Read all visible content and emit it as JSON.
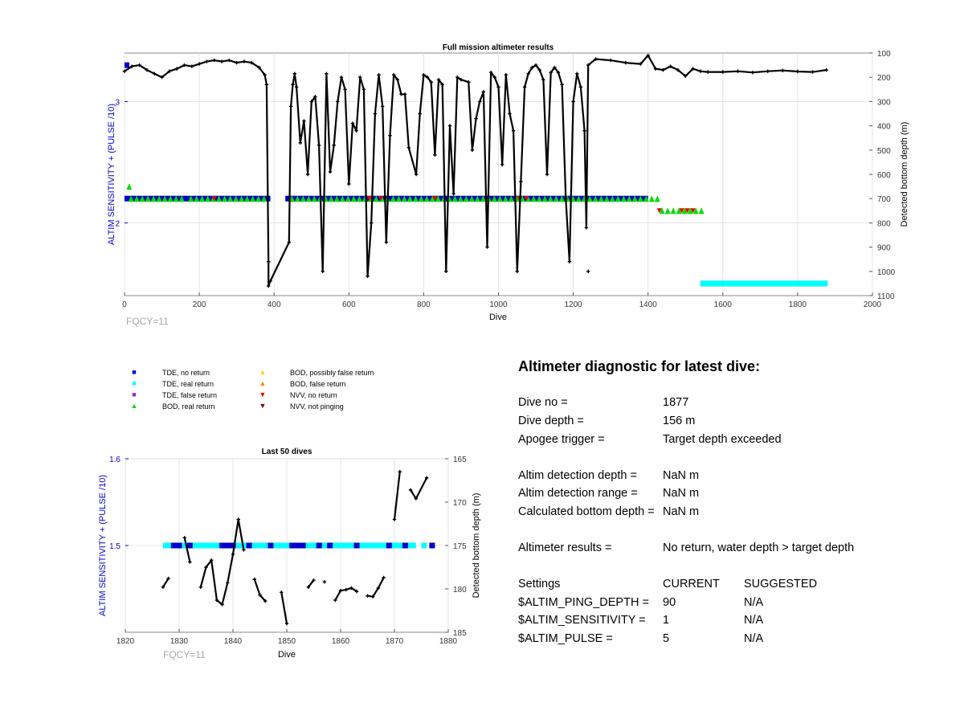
{
  "top": {
    "title": "Full mission altimeter results",
    "xlabel": "Dive",
    "ylabel_left": "ALTIM SENSITIVITY + (PULSE /10)",
    "ylabel_right": "Detected bottom depth (m)",
    "note": "FQCY=11",
    "x_ticks": [
      "0",
      "200",
      "400",
      "600",
      "800",
      "1000",
      "1200",
      "1400",
      "1600",
      "1800",
      "2000"
    ],
    "y_left_ticks": [
      "3",
      "2"
    ],
    "y_right_ticks": [
      "100",
      "200",
      "300",
      "400",
      "500",
      "600",
      "700",
      "800",
      "900",
      "1000",
      "1100"
    ]
  },
  "bottom": {
    "title": "Last 50 dives",
    "xlabel": "Dive",
    "ylabel_left": "ALTIM SENSITIVITY + (PULSE /10)",
    "ylabel_right": "Detected bottom depth (m)",
    "note": "FQCY=11",
    "x_ticks": [
      "1820",
      "1830",
      "1840",
      "1850",
      "1860",
      "1870",
      "1880"
    ],
    "y_left_ticks": [
      "1.6",
      "1.5"
    ],
    "y_right_ticks": [
      "165",
      "170",
      "175",
      "180",
      "185"
    ]
  },
  "legend": [
    {
      "label": "TDE, no return",
      "symbol": "square",
      "color": "#0000cc"
    },
    {
      "label": "TDE, real return",
      "symbol": "square",
      "color": "#00ffff"
    },
    {
      "label": "TDE, false return",
      "symbol": "square",
      "color": "#8833cc"
    },
    {
      "label": "BOD, real return",
      "symbol": "triangle-up",
      "color": "#00dd00"
    },
    {
      "label": "BOD, possibly false return",
      "symbol": "triangle-up",
      "color": "#ffd700"
    },
    {
      "label": "BOD, false return",
      "symbol": "triangle-up",
      "color": "#ff8c00"
    },
    {
      "label": "NVV, no return",
      "symbol": "triangle-down",
      "color": "#ee0000"
    },
    {
      "label": "NVV, not pinging",
      "symbol": "triangle-down",
      "color": "#7a0000"
    }
  ],
  "diagnostic": {
    "title": "Altimeter diagnostic for latest dive:",
    "rows": [
      {
        "label": "Dive no =",
        "value": "1877"
      },
      {
        "label": "Dive depth =",
        "value": "156 m"
      },
      {
        "label": "Apogee trigger =",
        "value": "Target depth exceeded"
      },
      {
        "label": "Altim detection depth =",
        "value": "NaN m"
      },
      {
        "label": "Altim detection range =",
        "value": "NaN m"
      },
      {
        "label": "Calculated bottom depth =",
        "value": "NaN m"
      },
      {
        "label": "Altimeter results =",
        "value": "No return, water depth > target depth"
      }
    ],
    "settings_header": {
      "label": "Settings",
      "current": "CURRENT",
      "suggested": "SUGGESTED"
    },
    "settings": [
      {
        "label": "$ALTIM_PING_DEPTH =",
        "current": "90",
        "suggested": "N/A"
      },
      {
        "label": "$ALTIM_SENSITIVITY =",
        "current": "1",
        "suggested": "N/A"
      },
      {
        "label": "$ALTIM_PULSE =",
        "current": "5",
        "suggested": "N/A"
      }
    ]
  },
  "chart_data": [
    {
      "type": "scatter",
      "title": "Full mission altimeter results",
      "xlabel": "Dive",
      "ylabel": "ALTIM SENSITIVITY + (PULSE /10)",
      "ylabel_right": "Detected bottom depth (m)",
      "xlim": [
        0,
        2000
      ],
      "ylim_left": [
        1.4,
        3.4
      ],
      "ylim_right": [
        1100,
        100
      ],
      "grid": true,
      "series": [
        {
          "name": "TDE, no return",
          "axis": "left",
          "segments": [
            [
              0,
              13,
              3.3
            ],
            [
              0,
              390,
              2.2
            ],
            [
              430,
              1400,
              2.2
            ],
            [
              1540,
              1880,
              1.5
            ]
          ]
        },
        {
          "name": "TDE, real return",
          "axis": "left",
          "segments": [
            [
              1540,
              1880,
              1.5
            ]
          ]
        },
        {
          "name": "BOD, real return",
          "axis": "left",
          "segments": [
            [
              5,
              15,
              2.3
            ],
            [
              10,
              160,
              2.2
            ],
            [
              170,
              380,
              2.2
            ],
            [
              440,
              1420,
              2.2
            ],
            [
              1430,
              1450,
              2.1
            ],
            [
              1460,
              1550,
              2.1
            ]
          ]
        },
        {
          "name": "NVV, no return",
          "axis": "left",
          "points": [
            [
              240,
              2.2
            ],
            [
              655,
              2.2
            ],
            [
              685,
              2.2
            ],
            [
              830,
              2.2
            ],
            [
              1055,
              2.2
            ],
            [
              1075,
              2.2
            ],
            [
              1430,
              2.1
            ],
            [
              1490,
              2.1
            ],
            [
              1505,
              2.1
            ],
            [
              1520,
              2.1
            ]
          ]
        },
        {
          "name": "Detected bottom depth",
          "axis": "right",
          "line": [
            [
              0,
              175
            ],
            [
              20,
              155
            ],
            [
              40,
              150
            ],
            [
              60,
              170
            ],
            [
              80,
              185
            ],
            [
              100,
              200
            ],
            [
              120,
              175
            ],
            [
              140,
              165
            ],
            [
              160,
              150
            ],
            [
              180,
              155
            ],
            [
              200,
              145
            ],
            [
              220,
              135
            ],
            [
              240,
              130
            ],
            [
              260,
              135
            ],
            [
              280,
              130
            ],
            [
              300,
              140
            ],
            [
              320,
              135
            ],
            [
              340,
              140
            ],
            [
              360,
              160
            ],
            [
              375,
              190
            ],
            [
              380,
              230
            ],
            [
              385,
              960
            ],
            [
              385,
              1060
            ],
            [
              390,
              1040
            ],
            [
              440,
              880
            ],
            [
              445,
              320
            ],
            [
              450,
              230
            ],
            [
              455,
              185
            ],
            [
              460,
              240
            ],
            [
              470,
              470
            ],
            [
              480,
              380
            ],
            [
              490,
              600
            ],
            [
              500,
              300
            ],
            [
              510,
              280
            ],
            [
              520,
              480
            ],
            [
              530,
              1000
            ],
            [
              540,
              185
            ],
            [
              550,
              590
            ],
            [
              560,
              480
            ],
            [
              570,
              300
            ],
            [
              580,
              200
            ],
            [
              590,
              250
            ],
            [
              600,
              640
            ],
            [
              610,
              390
            ],
            [
              620,
              420
            ],
            [
              630,
              200
            ],
            [
              640,
              250
            ],
            [
              650,
              1020
            ],
            [
              660,
              800
            ],
            [
              670,
              350
            ],
            [
              680,
              190
            ],
            [
              690,
              320
            ],
            [
              700,
              880
            ],
            [
              710,
              440
            ],
            [
              720,
              190
            ],
            [
              730,
              210
            ],
            [
              740,
              270
            ],
            [
              750,
              270
            ],
            [
              760,
              490
            ],
            [
              780,
              600
            ],
            [
              790,
              350
            ],
            [
              800,
              190
            ],
            [
              810,
              200
            ],
            [
              820,
              220
            ],
            [
              830,
              520
            ],
            [
              840,
              210
            ],
            [
              850,
              230
            ],
            [
              860,
              1000
            ],
            [
              870,
              400
            ],
            [
              880,
              680
            ],
            [
              890,
              200
            ],
            [
              900,
              210
            ],
            [
              920,
              220
            ],
            [
              930,
              500
            ],
            [
              940,
              370
            ],
            [
              950,
              300
            ],
            [
              960,
              260
            ],
            [
              970,
              900
            ],
            [
              980,
              180
            ],
            [
              990,
              200
            ],
            [
              1000,
              240
            ],
            [
              1010,
              560
            ],
            [
              1020,
              190
            ],
            [
              1030,
              350
            ],
            [
              1040,
              420
            ],
            [
              1050,
              1000
            ],
            [
              1060,
              630
            ],
            [
              1070,
              240
            ],
            [
              1080,
              185
            ],
            [
              1090,
              160
            ],
            [
              1100,
              150
            ],
            [
              1110,
              170
            ],
            [
              1120,
              210
            ],
            [
              1130,
              600
            ],
            [
              1140,
              180
            ],
            [
              1150,
              160
            ],
            [
              1160,
              180
            ],
            [
              1170,
              230
            ],
            [
              1180,
              700
            ],
            [
              1190,
              960
            ],
            [
              1200,
              300
            ],
            [
              1210,
              185
            ],
            [
              1220,
              240
            ],
            [
              1230,
              420
            ],
            [
              1235,
              820
            ],
            [
              1240,
              150
            ],
            [
              1260,
              125
            ],
            [
              1300,
              130
            ],
            [
              1340,
              140
            ],
            [
              1380,
              145
            ],
            [
              1400,
              110
            ],
            [
              1420,
              165
            ],
            [
              1440,
              170
            ],
            [
              1460,
              155
            ],
            [
              1480,
              170
            ],
            [
              1500,
              195
            ],
            [
              1520,
              165
            ],
            [
              1540,
              175
            ],
            [
              1560,
              178
            ],
            [
              1600,
              178
            ],
            [
              1640,
              175
            ],
            [
              1680,
              180
            ],
            [
              1720,
              175
            ],
            [
              1760,
              172
            ],
            [
              1800,
              176
            ],
            [
              1840,
              178
            ],
            [
              1877,
              170
            ]
          ]
        },
        {
          "name": "Detected bottom depth (outlier)",
          "axis": "right",
          "points": [
            [
              1240,
              1000
            ]
          ]
        }
      ]
    },
    {
      "type": "scatter",
      "title": "Last 50 dives",
      "xlabel": "Dive",
      "ylabel": "ALTIM SENSITIVITY + (PULSE /10)",
      "ylabel_right": "Detected bottom depth (m)",
      "xlim": [
        1820,
        1880
      ],
      "ylim_left": [
        1.4,
        1.6
      ],
      "ylim_right": [
        185,
        165
      ],
      "grid": true,
      "series": [
        {
          "name": "TDE, real return",
          "axis": "left",
          "segments": [
            [
              1827,
              1874,
              1.5
            ],
            [
              1875,
              1876,
              1.5
            ]
          ]
        },
        {
          "name": "TDE, no return",
          "axis": "left",
          "points": [
            [
              1829,
              1.5
            ],
            [
              1830,
              1.5
            ],
            [
              1832,
              1.5
            ],
            [
              1838,
              1.5
            ],
            [
              1839,
              1.5
            ],
            [
              1840,
              1.5
            ],
            [
              1843,
              1.5
            ],
            [
              1847,
              1.5
            ],
            [
              1851,
              1.5
            ],
            [
              1852,
              1.5
            ],
            [
              1853,
              1.5
            ],
            [
              1856,
              1.5
            ],
            [
              1858,
              1.5
            ],
            [
              1863,
              1.5
            ],
            [
              1869,
              1.5
            ],
            [
              1872,
              1.5
            ],
            [
              1877,
              1.5
            ]
          ]
        },
        {
          "name": "Detected bottom depth",
          "axis": "right",
          "lines": [
            [
              [
                1827,
                179.8
              ],
              [
                1828,
                178.8
              ]
            ],
            [
              [
                1831,
                174.1
              ],
              [
                1832,
                176.9
              ]
            ],
            [
              [
                1834,
                179.8
              ],
              [
                1835,
                177.5
              ],
              [
                1836,
                176.7
              ],
              [
                1837,
                181.3
              ],
              [
                1838,
                181.8
              ],
              [
                1839,
                179.3
              ],
              [
                1840,
                176.0
              ],
              [
                1841,
                172.0
              ],
              [
                1842,
                175.5
              ]
            ],
            [
              [
                1844,
                178.9
              ],
              [
                1845,
                180.7
              ],
              [
                1846,
                181.4
              ]
            ],
            [
              [
                1849,
                180.4
              ],
              [
                1850,
                184.0
              ]
            ],
            [
              [
                1854,
                179.8
              ],
              [
                1855,
                179.0
              ]
            ],
            [
              [
                1859,
                181.3
              ],
              [
                1860,
                180.2
              ],
              [
                1861,
                180.1
              ],
              [
                1862,
                179.9
              ],
              [
                1863,
                180.3
              ]
            ],
            [
              [
                1865,
                180.8
              ],
              [
                1866,
                180.9
              ],
              [
                1867,
                179.9
              ],
              [
                1868,
                178.7
              ]
            ],
            [
              [
                1870,
                172.0
              ],
              [
                1871,
                166.5
              ]
            ],
            [
              [
                1873,
                168.6
              ],
              [
                1874,
                169.6
              ],
              [
                1876,
                167.2
              ]
            ]
          ]
        },
        {
          "name": "Detected bottom depth (isolated)",
          "axis": "right",
          "points": [
            [
              1857,
              179.2
            ]
          ]
        }
      ]
    }
  ]
}
